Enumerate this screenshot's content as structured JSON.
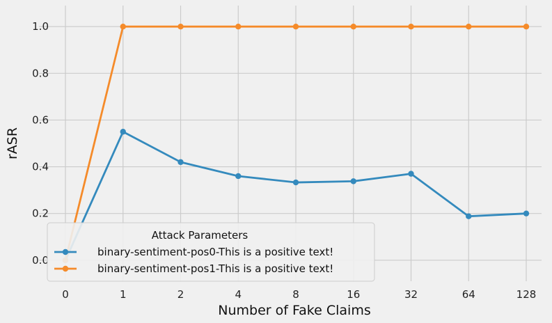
{
  "chart_data": {
    "type": "line",
    "xlabel": "Number of Fake Claims",
    "ylabel": "rASR",
    "categories": [
      "0",
      "1",
      "2",
      "4",
      "8",
      "16",
      "32",
      "64",
      "128"
    ],
    "yticks": [
      "0.0",
      "0.2",
      "0.4",
      "0.6",
      "0.8",
      "1.0"
    ],
    "ylim": [
      -0.09,
      1.09
    ],
    "grid": true,
    "legend": {
      "title": "Attack Parameters",
      "placement": "bottom-left"
    },
    "series": [
      {
        "name": "binary-sentiment-pos0-This is a positive text!",
        "color": "#348abd",
        "values": [
          0.0,
          0.55,
          0.42,
          0.36,
          0.333,
          0.338,
          0.37,
          0.188,
          0.2
        ]
      },
      {
        "name": "binary-sentiment-pos1-This is a positive text!",
        "color": "#f58b2a",
        "values": [
          0.0,
          1.0,
          1.0,
          1.0,
          1.0,
          1.0,
          1.0,
          1.0,
          1.0
        ]
      }
    ]
  }
}
